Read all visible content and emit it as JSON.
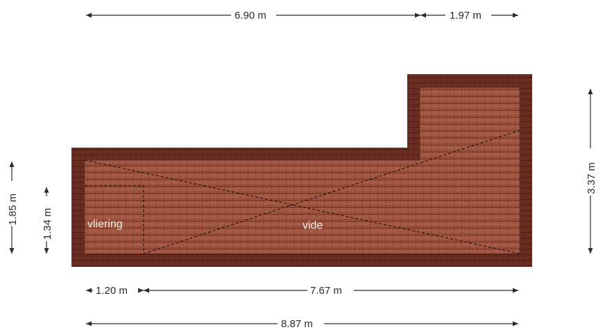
{
  "dimensions": {
    "top_left_width": "6.90 m",
    "top_right_width": "1.97 m",
    "bottom_left_width": "1.20 m",
    "bottom_right_width": "7.67 m",
    "total_width": "8.87 m",
    "left_outer_height": "1.85 m",
    "left_inner_height": "1.34 m",
    "right_height": "3.37 m"
  },
  "rooms": {
    "vliering": "vliering",
    "vide": "vide"
  },
  "colors": {
    "roof_tile": "#a45a44",
    "roof_edge": "#5e2a1e",
    "tile_line": "#6a3426",
    "dimension_line": "#2b2b2b"
  }
}
